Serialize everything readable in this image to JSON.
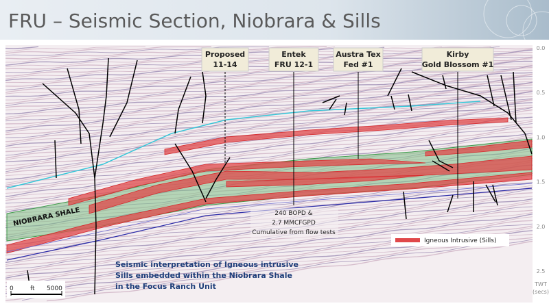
{
  "header": {
    "title": "FRU – Seismic Section, Niobrara & Sills"
  },
  "wells": [
    {
      "lines": [
        "Proposed",
        "11-14"
      ]
    },
    {
      "lines": [
        "Entek",
        "FRU 12-1"
      ]
    },
    {
      "lines": [
        "Austra Tex",
        "Fed #1"
      ]
    },
    {
      "lines": [
        "Kirby",
        "Gold Blossom #1"
      ]
    }
  ],
  "annotations": {
    "formation": "NIOBRARA SHALE",
    "production": [
      "240 BOPD &",
      "2.7 MMCFGPD",
      "Cumulative from flow tests"
    ],
    "interpretation": [
      "Seismic interpretation of Igneous intrusive",
      "Sills embedded within the Niobrara Shale",
      "in the Focus Ranch Unit"
    ]
  },
  "legend": {
    "label": "Igneous Intrusive (Sills)"
  },
  "scale_bar": {
    "start": "0",
    "unit": "ft",
    "end": "5000"
  },
  "time_axis": {
    "ticks": [
      "0.0",
      "0.5",
      "1.0",
      "1.5",
      "2.0",
      "2.5"
    ],
    "label": [
      "TWT",
      "(secs)"
    ]
  }
}
